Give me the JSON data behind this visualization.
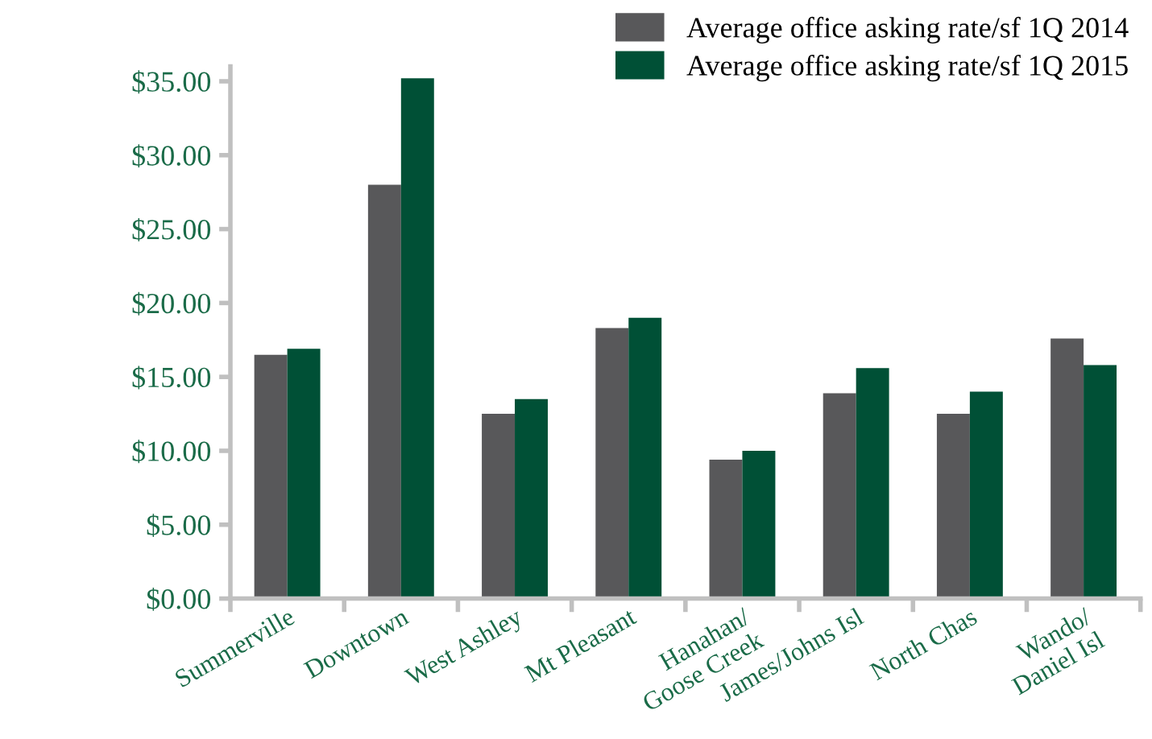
{
  "chart_data": {
    "type": "bar",
    "categories": [
      "Summerville",
      "Downtown",
      "West Ashley",
      "Mt Pleasant",
      "Hanahan/\nGoose Creek",
      "James/Johns Isl",
      "North Chas",
      "Wando/\nDaniel Isl"
    ],
    "series": [
      {
        "name": "Average office asking rate/sf 1Q 2014",
        "color": "#58585a",
        "values": [
          16.5,
          28.0,
          12.5,
          18.3,
          9.4,
          13.9,
          12.5,
          17.6
        ]
      },
      {
        "name": "Average office asking rate/sf 1Q 2015",
        "color": "#005036",
        "values": [
          16.9,
          35.2,
          13.5,
          19.0,
          10.0,
          15.6,
          14.0,
          15.8
        ]
      }
    ],
    "ylim": [
      0,
      36
    ],
    "yticks": [
      {
        "value": 0,
        "label": "$0.00"
      },
      {
        "value": 5,
        "label": "$5.00"
      },
      {
        "value": 10,
        "label": "$10.00"
      },
      {
        "value": 15,
        "label": "$15.00"
      },
      {
        "value": 20,
        "label": "$20.00"
      },
      {
        "value": 25,
        "label": "$25.00"
      },
      {
        "value": 30,
        "label": "$30.00"
      },
      {
        "value": 35,
        "label": "$35.00"
      }
    ],
    "grid": false,
    "legend": "top right"
  }
}
